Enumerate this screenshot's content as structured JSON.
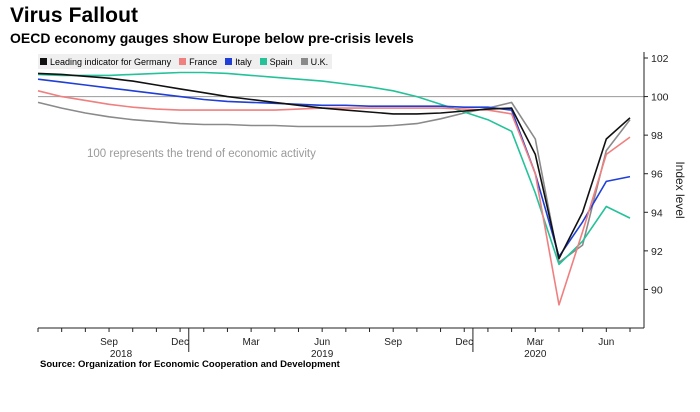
{
  "header": {
    "title": "Virus Fallout",
    "subtitle": "OECD economy gauges show Europe below pre-crisis levels"
  },
  "footer": {
    "source": "Source: Organization for Economic Cooperation and Development"
  },
  "chart_data": {
    "type": "line",
    "title": "Virus Fallout",
    "subtitle": "OECD economy gauges show Europe below pre-crisis levels",
    "ylabel": "Index level",
    "xlabel": "",
    "ylim": [
      88,
      102
    ],
    "yticks": [
      90,
      92,
      94,
      96,
      98,
      100,
      102
    ],
    "reference_line": 100,
    "annotation": "100 represents the trend of economic activity",
    "grid": false,
    "legend_position": "top-left",
    "x_tick_labels": [
      "Sep",
      "Dec",
      "Mar",
      "Jun",
      "Sep",
      "Dec",
      "Mar",
      "Jun"
    ],
    "year_labels": [
      {
        "label": "2018",
        "under": "Sep"
      },
      {
        "label": "2019",
        "under": "Jun"
      },
      {
        "label": "2020",
        "under": "Mar"
      }
    ],
    "x": [
      "2018-06",
      "2018-07",
      "2018-08",
      "2018-09",
      "2018-10",
      "2018-11",
      "2018-12",
      "2019-01",
      "2019-02",
      "2019-03",
      "2019-04",
      "2019-05",
      "2019-06",
      "2019-07",
      "2019-08",
      "2019-09",
      "2019-10",
      "2019-11",
      "2019-12",
      "2020-01",
      "2020-02",
      "2020-03",
      "2020-04",
      "2020-05",
      "2020-06",
      "2020-07"
    ],
    "series": [
      {
        "name": "Leading indicator for Germany",
        "color": "#111111",
        "values": [
          101.2,
          101.15,
          101.05,
          100.95,
          100.8,
          100.6,
          100.4,
          100.2,
          100.0,
          99.85,
          99.7,
          99.55,
          99.4,
          99.3,
          99.2,
          99.1,
          99.1,
          99.15,
          99.25,
          99.35,
          99.4,
          97.0,
          91.6,
          94.0,
          97.8,
          98.9
        ]
      },
      {
        "name": "France",
        "color": "#f07f7f",
        "values": [
          100.3,
          100.0,
          99.8,
          99.6,
          99.45,
          99.35,
          99.3,
          99.3,
          99.3,
          99.3,
          99.3,
          99.35,
          99.4,
          99.4,
          99.4,
          99.4,
          99.4,
          99.4,
          99.35,
          99.3,
          99.1,
          96.0,
          89.2,
          93.0,
          97.0,
          97.9
        ]
      },
      {
        "name": "Italy",
        "color": "#1f3fd6",
        "values": [
          100.9,
          100.75,
          100.6,
          100.45,
          100.3,
          100.15,
          100.0,
          99.85,
          99.75,
          99.7,
          99.65,
          99.6,
          99.55,
          99.55,
          99.5,
          99.5,
          99.5,
          99.5,
          99.45,
          99.45,
          99.3,
          96.0,
          91.7,
          93.5,
          95.6,
          95.85
        ]
      },
      {
        "name": "Spain",
        "color": "#25c29a",
        "values": [
          101.15,
          101.1,
          101.1,
          101.1,
          101.15,
          101.2,
          101.25,
          101.25,
          101.2,
          101.1,
          101.0,
          100.9,
          100.8,
          100.65,
          100.5,
          100.3,
          100.0,
          99.6,
          99.2,
          98.8,
          98.2,
          95.0,
          91.3,
          92.5,
          94.3,
          93.7
        ]
      },
      {
        "name": "U.K.",
        "color": "#8a8a8a",
        "values": [
          99.7,
          99.4,
          99.15,
          98.95,
          98.8,
          98.7,
          98.6,
          98.55,
          98.55,
          98.5,
          98.5,
          98.45,
          98.45,
          98.45,
          98.45,
          98.5,
          98.6,
          98.85,
          99.15,
          99.4,
          99.7,
          97.8,
          91.4,
          92.3,
          97.2,
          98.8
        ]
      }
    ]
  }
}
